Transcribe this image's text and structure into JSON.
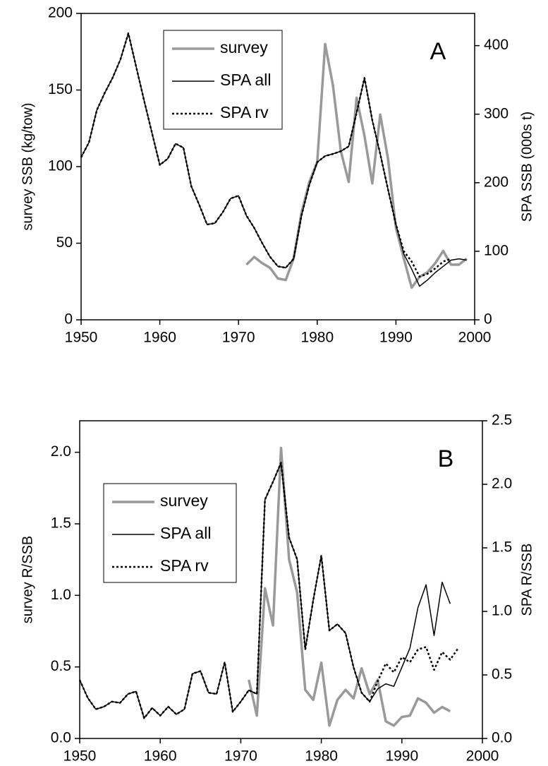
{
  "chart_data": [
    {
      "type": "line",
      "annotation": "A",
      "ylabel": "survey SSB (kg/tow)",
      "y2label": "SPA SSB (000s t)",
      "x": [
        1950,
        1951,
        1952,
        1953,
        1954,
        1955,
        1956,
        1957,
        1958,
        1959,
        1960,
        1961,
        1962,
        1963,
        1964,
        1965,
        1966,
        1967,
        1968,
        1969,
        1970,
        1971,
        1972,
        1973,
        1974,
        1975,
        1976,
        1977,
        1978,
        1979,
        1980,
        1981,
        1982,
        1983,
        1984,
        1985,
        1986,
        1987,
        1988,
        1989,
        1990,
        1991,
        1992,
        1993,
        1994,
        1995,
        1996,
        1997,
        1998,
        1999
      ],
      "xlim": [
        1950,
        2000
      ],
      "xticks": [
        1950,
        1960,
        1970,
        1980,
        1990,
        2000
      ],
      "ylim": [
        0,
        200
      ],
      "yticks": [
        0,
        50,
        100,
        150,
        200
      ],
      "y2lim": [
        0,
        447
      ],
      "y2ticks": [
        0,
        100,
        200,
        300,
        400
      ],
      "legend": "upper center",
      "series": [
        {
          "name": "survey",
          "color": "#999999",
          "width": 3.5,
          "dash": "solid",
          "axis": "y",
          "values": [
            null,
            null,
            null,
            null,
            null,
            null,
            null,
            null,
            null,
            null,
            null,
            null,
            null,
            null,
            null,
            null,
            null,
            null,
            null,
            null,
            null,
            36,
            41,
            37,
            34,
            27,
            26,
            40,
            70,
            90,
            103,
            180,
            153,
            110,
            90,
            145,
            120,
            89,
            134,
            105,
            60,
            40,
            21,
            28,
            31,
            37,
            45,
            36,
            36,
            40
          ]
        },
        {
          "name": "SPA all",
          "color": "#000000",
          "width": 1.5,
          "dash": "solid",
          "axis": "y2",
          "values": [
            237,
            259,
            306,
            331,
            353,
            380,
            418,
            369,
            320,
            273,
            226,
            235,
            257,
            251,
            195,
            168,
            139,
            141,
            157,
            177,
            181,
            152,
            134,
            112,
            92,
            78,
            76,
            89,
            152,
            197,
            230,
            239,
            242,
            246,
            253,
            302,
            353,
            291,
            242,
            190,
            139,
            96,
            74,
            49,
            58,
            69,
            78,
            87,
            89,
            87
          ]
        },
        {
          "name": "SPA rv",
          "color": "#000000",
          "width": 2.5,
          "dash": "dotted",
          "axis": "y2",
          "values": [
            237,
            259,
            306,
            331,
            353,
            380,
            418,
            369,
            320,
            273,
            226,
            235,
            257,
            251,
            195,
            168,
            139,
            141,
            157,
            177,
            181,
            152,
            134,
            112,
            92,
            78,
            76,
            89,
            152,
            197,
            230,
            239,
            242,
            246,
            253,
            302,
            353,
            291,
            242,
            190,
            139,
            100,
            85,
            63,
            67,
            75,
            85,
            89,
            null,
            null
          ]
        }
      ]
    },
    {
      "type": "line",
      "annotation": "B",
      "ylabel": "survey R/SSB",
      "y2label": "SPA R/SSB",
      "x": [
        1950,
        1951,
        1952,
        1953,
        1954,
        1955,
        1956,
        1957,
        1958,
        1959,
        1960,
        1961,
        1962,
        1963,
        1964,
        1965,
        1966,
        1967,
        1968,
        1969,
        1970,
        1971,
        1972,
        1973,
        1974,
        1975,
        1976,
        1977,
        1978,
        1979,
        1980,
        1981,
        1982,
        1983,
        1984,
        1985,
        1986,
        1987,
        1988,
        1989,
        1990,
        1991,
        1992,
        1993,
        1994,
        1995,
        1996,
        1997
      ],
      "xlim": [
        1950,
        2000
      ],
      "xticks": [
        1950,
        1960,
        1970,
        1980,
        1990,
        2000
      ],
      "ylim": [
        0,
        2.22
      ],
      "yticks": [
        {
          "value": 0,
          "label": "0.0"
        },
        0.5,
        {
          "value": 1,
          "label": "1.0"
        },
        1.5,
        {
          "value": 2,
          "label": "2.0"
        }
      ],
      "y2lim": [
        0,
        2.5
      ],
      "y2ticks": [
        {
          "value": 0,
          "label": "0.0"
        },
        0.5,
        {
          "value": 1,
          "label": "1.0"
        },
        1.5,
        {
          "value": 2,
          "label": "2.0"
        },
        2.5
      ],
      "legend": "center left",
      "series": [
        {
          "name": "survey",
          "color": "#999999",
          "width": 3.5,
          "dash": "solid",
          "axis": "y",
          "values": [
            null,
            null,
            null,
            null,
            null,
            null,
            null,
            null,
            null,
            null,
            null,
            null,
            null,
            null,
            null,
            null,
            null,
            null,
            null,
            null,
            null,
            0.41,
            0.16,
            1.05,
            0.79,
            2.03,
            1.25,
            1.02,
            0.34,
            0.27,
            0.53,
            0.09,
            0.27,
            0.34,
            0.28,
            0.49,
            0.31,
            0.41,
            0.12,
            0.09,
            0.15,
            0.16,
            0.28,
            0.25,
            0.18,
            0.22,
            0.19,
            null
          ]
        },
        {
          "name": "SPA all",
          "color": "#000000",
          "width": 1.5,
          "dash": "solid",
          "axis": "y2",
          "values": [
            0.46,
            0.32,
            0.23,
            0.25,
            0.29,
            0.28,
            0.35,
            0.37,
            0.16,
            0.24,
            0.18,
            0.25,
            0.19,
            0.23,
            0.51,
            0.53,
            0.36,
            0.35,
            0.6,
            0.21,
            0.29,
            0.38,
            0.35,
            1.88,
            2.02,
            2.17,
            1.58,
            1.41,
            0.7,
            1.09,
            1.44,
            0.85,
            0.9,
            0.83,
            0.56,
            0.36,
            0.29,
            0.39,
            0.43,
            0.41,
            0.56,
            0.71,
            1.03,
            1.21,
            0.81,
            1.23,
            1.06,
            null
          ]
        },
        {
          "name": "SPA rv",
          "color": "#000000",
          "width": 2.5,
          "dash": "dotted",
          "axis": "y2",
          "values": [
            0.46,
            0.32,
            0.23,
            0.25,
            0.29,
            0.28,
            0.35,
            0.37,
            0.16,
            0.24,
            0.18,
            0.25,
            0.19,
            0.23,
            0.51,
            0.53,
            0.36,
            0.35,
            0.6,
            0.21,
            0.29,
            0.38,
            0.35,
            1.88,
            2.02,
            2.17,
            1.58,
            1.41,
            0.7,
            1.09,
            1.44,
            0.85,
            0.9,
            0.83,
            0.56,
            0.36,
            0.29,
            0.45,
            0.59,
            0.52,
            0.64,
            0.6,
            0.7,
            0.72,
            0.54,
            0.68,
            0.62,
            0.71
          ]
        }
      ]
    }
  ]
}
